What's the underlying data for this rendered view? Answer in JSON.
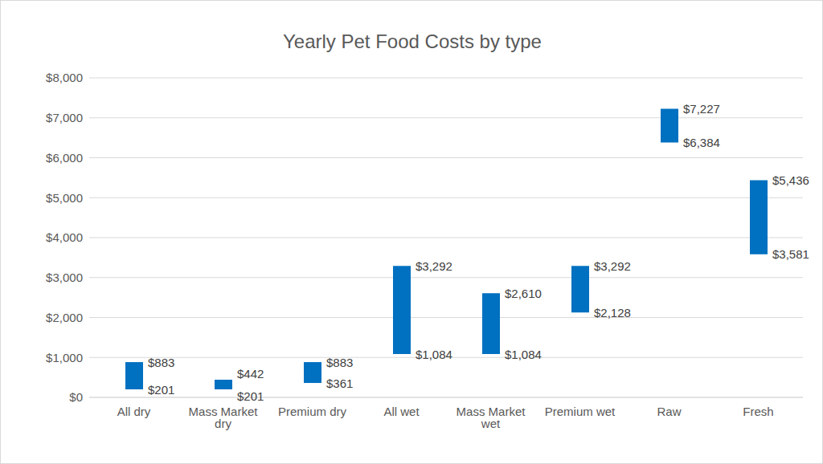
{
  "chart_data": {
    "type": "bar",
    "title": "Yearly Pet Food Costs by type",
    "categories": [
      "All dry",
      "Mass Market dry",
      "Premium dry",
      "All wet",
      "Mass Market wet",
      "Premium wet",
      "Raw",
      "Fresh"
    ],
    "values": [
      [
        201,
        883
      ],
      [
        201,
        442
      ],
      [
        361,
        883
      ],
      [
        1084,
        3292
      ],
      [
        1084,
        2610
      ],
      [
        2128,
        3292
      ],
      [
        6384,
        7227
      ],
      [
        3581,
        5436
      ]
    ],
    "value_labels": [
      [
        "$201",
        "$883"
      ],
      [
        "$201",
        "$442"
      ],
      [
        "$361",
        "$883"
      ],
      [
        "$1,084",
        "$3,292"
      ],
      [
        "$1,084",
        "$2,610"
      ],
      [
        "$2,128",
        "$3,292"
      ],
      [
        "$6,384",
        "$7,227"
      ],
      [
        "$3,581",
        "$5,436"
      ]
    ],
    "color": "#0070c0",
    "ylim": [
      0,
      8000
    ],
    "yticks": [
      {
        "value": 0,
        "label": "$0"
      },
      {
        "value": 1000,
        "label": "$1,000"
      },
      {
        "value": 2000,
        "label": "$2,000"
      },
      {
        "value": 3000,
        "label": "$3,000"
      },
      {
        "value": 4000,
        "label": "$4,000"
      },
      {
        "value": 5000,
        "label": "$5,000"
      },
      {
        "value": 6000,
        "label": "$6,000"
      },
      {
        "value": 7000,
        "label": "$7,000"
      },
      {
        "value": 8000,
        "label": "$8,000"
      }
    ],
    "grid": true,
    "data_labels": true
  }
}
